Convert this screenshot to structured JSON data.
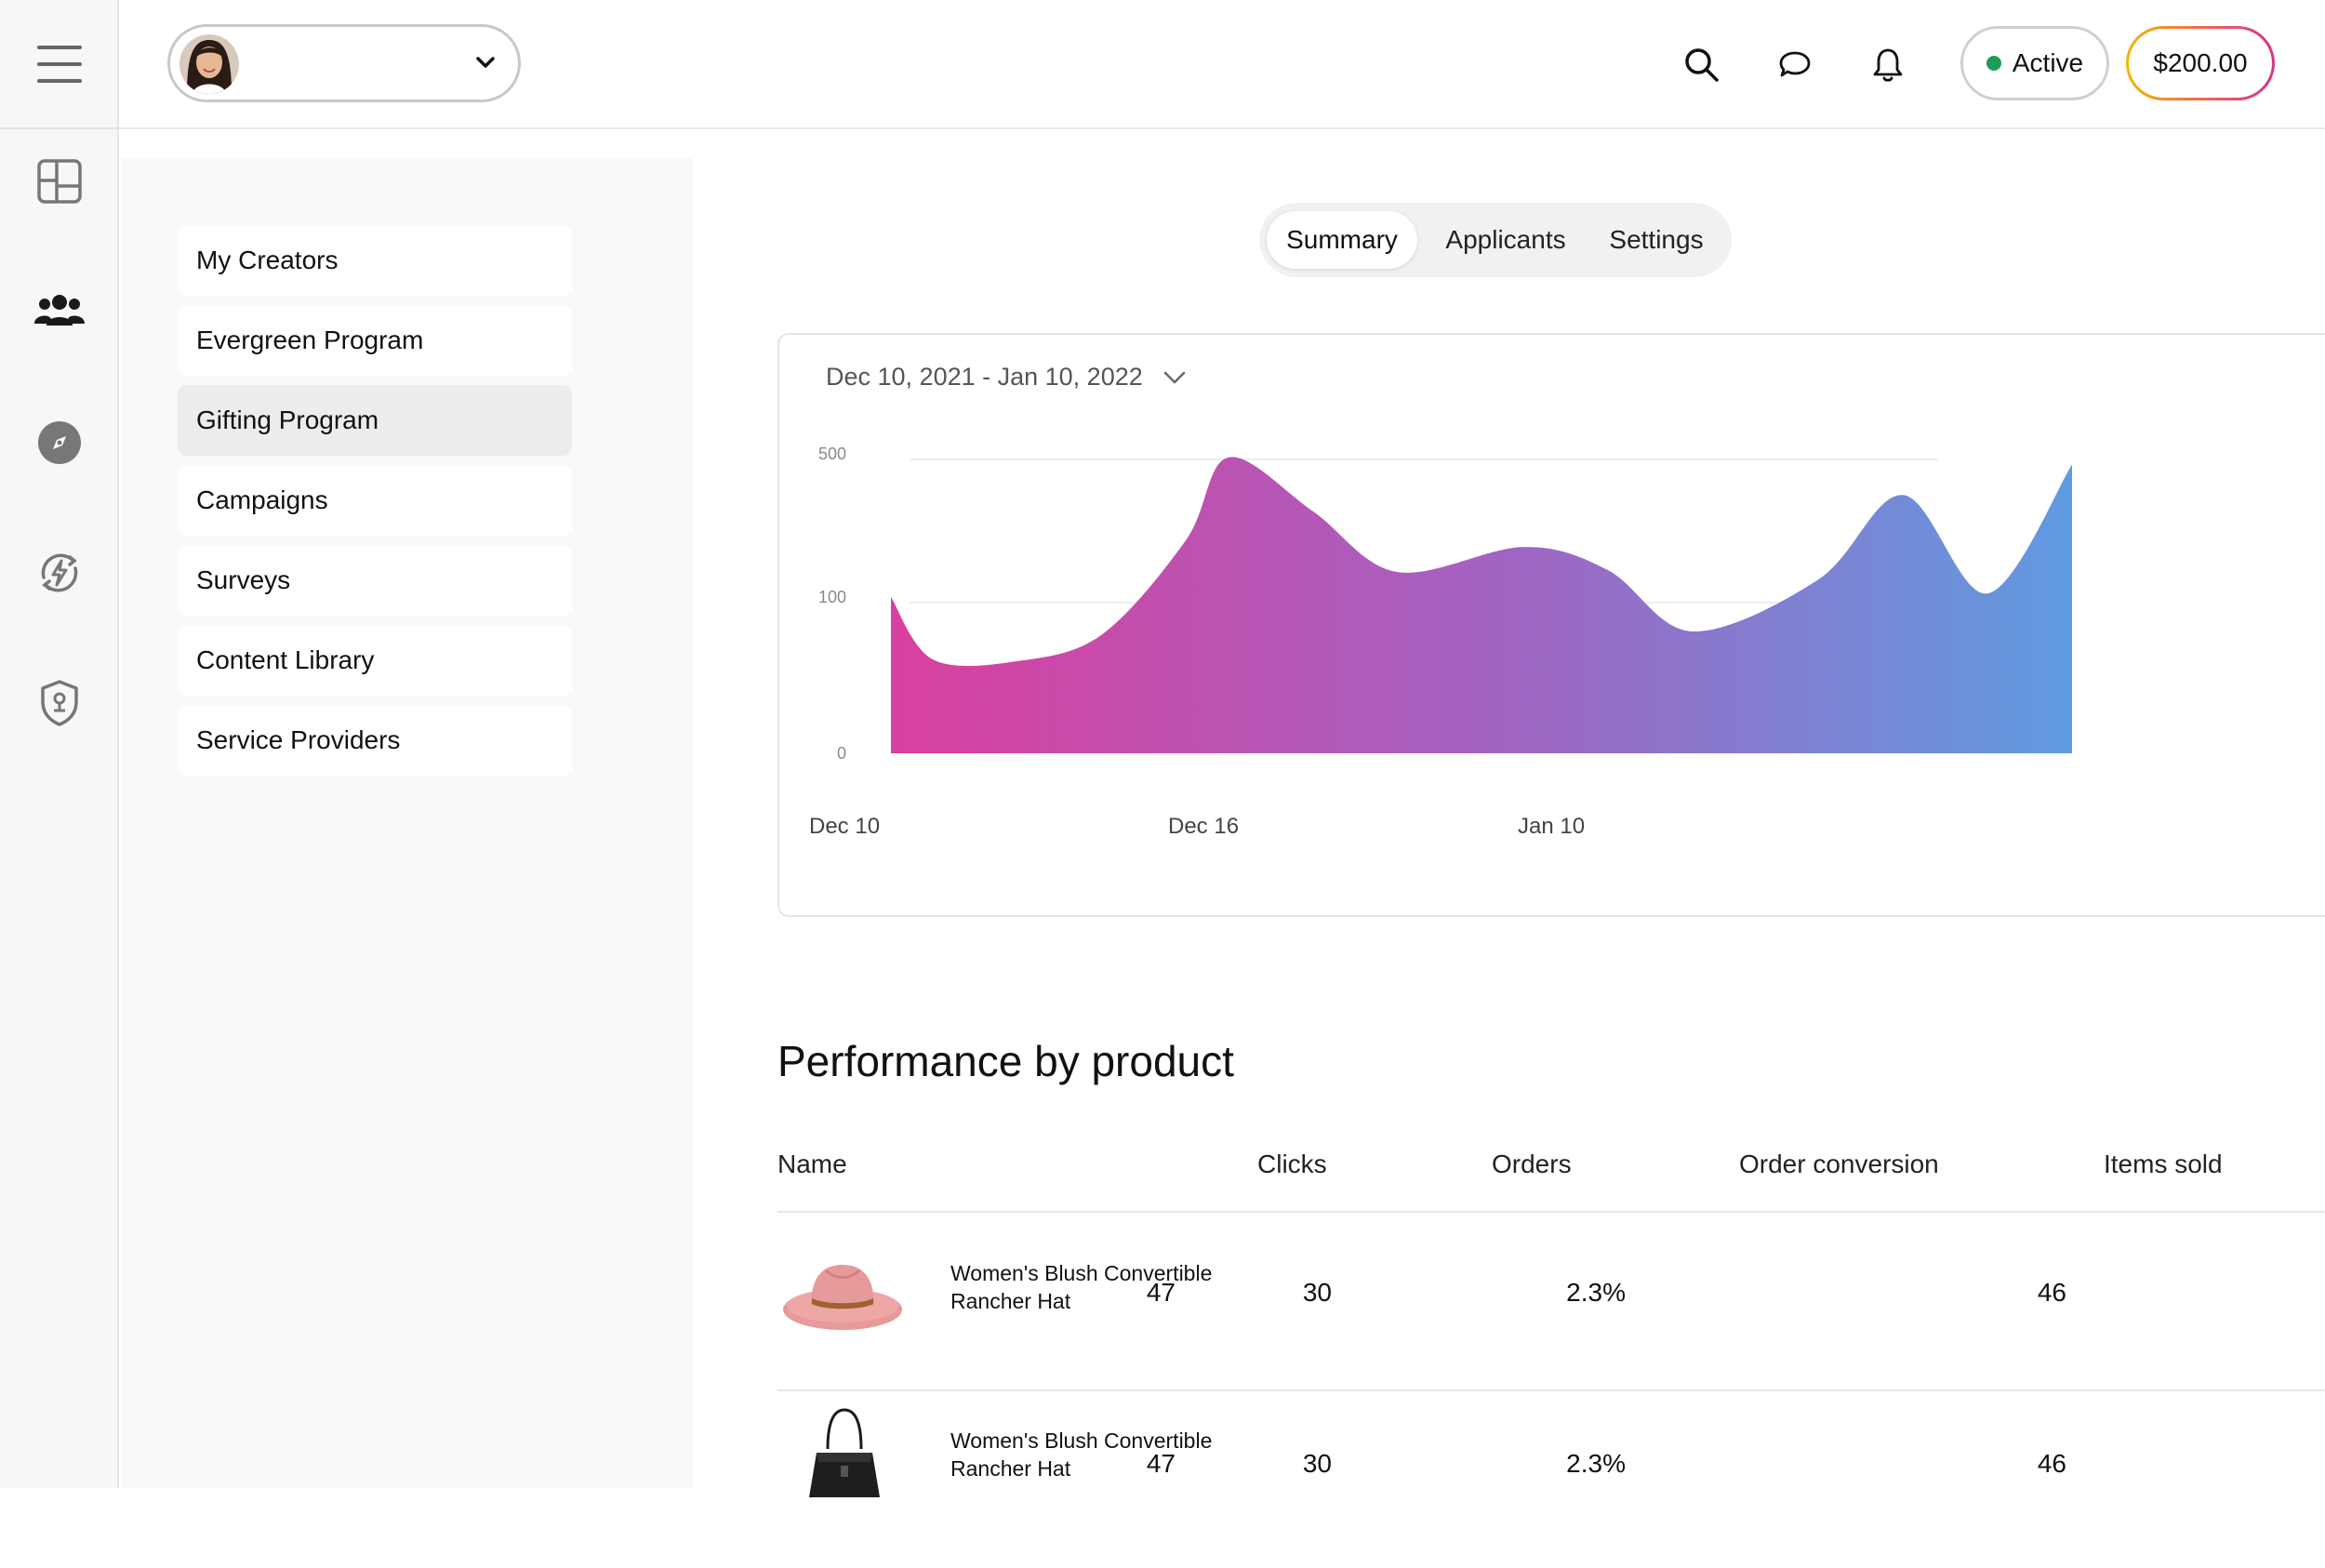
{
  "header": {
    "active_status": "Active",
    "balance": "$200.00"
  },
  "subnav": {
    "items": [
      {
        "label": "My Creators"
      },
      {
        "label": "Evergreen Program"
      },
      {
        "label": "Gifting Program",
        "selected": true
      },
      {
        "label": "Campaigns"
      },
      {
        "label": "Surveys"
      },
      {
        "label": "Content Library"
      },
      {
        "label": "Service Providers"
      }
    ]
  },
  "tabs": [
    {
      "label": "Summary",
      "active": true
    },
    {
      "label": "Applicants"
    },
    {
      "label": "Settings"
    }
  ],
  "chart": {
    "date_range": "Dec 10, 2021 - Jan 10, 2022"
  },
  "chart_data": {
    "type": "area",
    "title": "",
    "xlabel": "",
    "ylabel": "",
    "y_ticks": [
      "500",
      "100",
      "0"
    ],
    "x_ticks": [
      "Dec 10",
      "Dec 16",
      "Jan 10"
    ],
    "grid": true,
    "gradient": [
      "#d9409f",
      "#a462c1",
      "#5f9be0"
    ],
    "points": [
      {
        "x": "Dec 10",
        "y": 100
      },
      {
        "x": "Dec 11",
        "y": 60
      },
      {
        "x": "Dec 13",
        "y": 59
      },
      {
        "x": "Dec 15",
        "y": 76
      },
      {
        "x": "Dec 17",
        "y": 260
      },
      {
        "x": "Dec 18",
        "y": 490
      },
      {
        "x": "Dec 20",
        "y": 340
      },
      {
        "x": "Dec 22",
        "y": 170
      },
      {
        "x": "Dec 25",
        "y": 240
      },
      {
        "x": "Dec 27",
        "y": 175
      },
      {
        "x": "Dec 29",
        "y": 78
      },
      {
        "x": "Jan 1",
        "y": 150
      },
      {
        "x": "Jan 3",
        "y": 385
      },
      {
        "x": "Jan 5",
        "y": 110
      },
      {
        "x": "Jan 7",
        "y": 470
      }
    ]
  },
  "performance": {
    "title": "Performance by product",
    "columns": [
      "Name",
      "Clicks",
      "Orders",
      "Order conversion",
      "Items sold"
    ],
    "rows": [
      {
        "name": "Women's Blush Convertible Rancher Hat",
        "clicks": "47",
        "orders": "30",
        "conversion": "2.3%",
        "items_sold": "46",
        "image": "pink-rancher-hat"
      },
      {
        "name": "Women's Blush Convertible Rancher Hat",
        "clicks": "47",
        "orders": "30",
        "conversion": "2.3%",
        "items_sold": "46",
        "image": "black-bucket-bag"
      }
    ]
  }
}
